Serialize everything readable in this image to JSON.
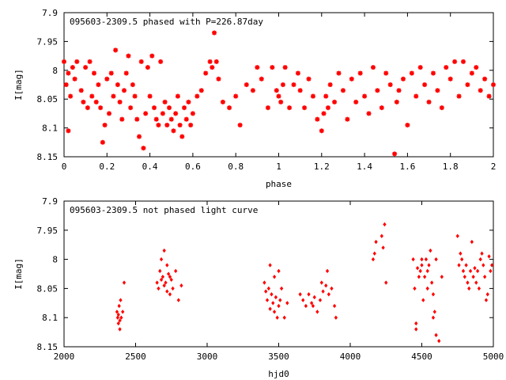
{
  "chart_data": [
    {
      "type": "scatter",
      "title": "095603-2309.5 phased with P=226.87day",
      "xlabel": "phase",
      "ylabel": "I[mag]",
      "xlim": [
        0,
        2
      ],
      "ylim": [
        8.15,
        7.9
      ],
      "y_inverted": true,
      "xticks": [
        0,
        0.2,
        0.4,
        0.6,
        0.8,
        1,
        1.2,
        1.4,
        1.6,
        1.8,
        2
      ],
      "yticks": [
        7.9,
        7.95,
        8,
        8.05,
        8.1,
        8.15
      ],
      "xtick_labels": [
        "0",
        "0.2",
        "0.4",
        "0.6",
        "0.8",
        "1",
        "1.2",
        "1.4",
        "1.6",
        "1.8",
        "2"
      ],
      "ytick_labels": [
        "7.9",
        "7.95",
        "8",
        "8.05",
        "8.1",
        "8.15"
      ],
      "marker_color": "#ff0000",
      "marker": "star",
      "grid": false,
      "series": [
        {
          "x": [
            0.0,
            0.01,
            0.02,
            0.02,
            0.03,
            0.04,
            0.05,
            0.06,
            0.08,
            0.09,
            0.1,
            0.11,
            0.12,
            0.13,
            0.14,
            0.15,
            0.16,
            0.17,
            0.18,
            0.19,
            0.2,
            0.21,
            0.22,
            0.23,
            0.24,
            0.25,
            0.26,
            0.27,
            0.28,
            0.29,
            0.3,
            0.31,
            0.32,
            0.33,
            0.34,
            0.35,
            0.36,
            0.37,
            0.38,
            0.39,
            0.4,
            0.41,
            0.42,
            0.43,
            0.44,
            0.45,
            0.46,
            0.47,
            0.48,
            0.49,
            0.5,
            0.51,
            0.52,
            0.53,
            0.54,
            0.55,
            0.56,
            0.57,
            0.58,
            0.59,
            0.6,
            0.62,
            0.64,
            0.66,
            0.68,
            0.69,
            0.7,
            0.71,
            0.72,
            0.74,
            0.77,
            0.8,
            0.82,
            0.85,
            0.88,
            0.9,
            0.92,
            0.95,
            0.97,
            0.99,
            1.0,
            1.01,
            1.02,
            1.03,
            1.05,
            1.07,
            1.09,
            1.1,
            1.12,
            1.14,
            1.16,
            1.18,
            1.2,
            1.21,
            1.22,
            1.23,
            1.24,
            1.26,
            1.28,
            1.3,
            1.32,
            1.34,
            1.36,
            1.38,
            1.4,
            1.42,
            1.44,
            1.46,
            1.48,
            1.5,
            1.52,
            1.54,
            1.55,
            1.56,
            1.58,
            1.6,
            1.62,
            1.64,
            1.66,
            1.68,
            1.7,
            1.72,
            1.74,
            1.76,
            1.78,
            1.8,
            1.82,
            1.84,
            1.86,
            1.88,
            1.9,
            1.92,
            1.94,
            1.96,
            1.98,
            2.0
          ],
          "y": [
            7.985,
            8.025,
            8.005,
            8.105,
            8.045,
            7.995,
            8.015,
            7.985,
            8.035,
            8.055,
            7.995,
            8.065,
            7.985,
            8.045,
            8.005,
            8.055,
            8.025,
            8.065,
            8.125,
            8.095,
            8.015,
            8.075,
            8.005,
            8.045,
            7.965,
            8.025,
            8.055,
            8.085,
            8.035,
            8.005,
            7.975,
            8.065,
            8.025,
            8.045,
            8.085,
            8.115,
            7.985,
            8.135,
            8.075,
            7.995,
            8.045,
            7.975,
            8.065,
            8.085,
            8.095,
            7.985,
            8.075,
            8.055,
            8.095,
            8.065,
            8.085,
            8.105,
            8.075,
            8.045,
            8.095,
            8.115,
            8.065,
            8.085,
            8.055,
            8.095,
            8.075,
            8.045,
            8.035,
            8.005,
            7.985,
            7.995,
            7.935,
            7.985,
            8.015,
            8.055,
            8.065,
            8.045,
            8.095,
            8.025,
            8.035,
            7.995,
            8.015,
            8.065,
            7.995,
            8.035,
            8.045,
            8.055,
            8.025,
            7.995,
            8.065,
            8.025,
            8.005,
            8.035,
            8.065,
            8.015,
            8.045,
            8.085,
            8.105,
            8.075,
            8.045,
            8.065,
            8.025,
            8.055,
            8.005,
            8.035,
            8.085,
            8.015,
            8.055,
            8.005,
            8.045,
            8.075,
            7.995,
            8.035,
            8.065,
            8.005,
            8.025,
            8.145,
            8.055,
            8.035,
            8.015,
            8.095,
            8.005,
            8.045,
            7.995,
            8.025,
            8.055,
            8.005,
            8.035,
            8.065,
            7.995,
            8.015,
            7.985,
            8.045,
            7.985,
            8.025,
            8.005,
            7.995,
            8.035,
            8.015,
            8.045,
            8.025
          ]
        }
      ]
    },
    {
      "type": "scatter",
      "title": "095603-2309.5 not phased light curve",
      "xlabel": "hjd0",
      "ylabel": "I[mag]",
      "xlim": [
        2000,
        5000
      ],
      "ylim": [
        8.15,
        7.9
      ],
      "y_inverted": true,
      "xticks": [
        2000,
        2500,
        3000,
        3500,
        4000,
        4500,
        5000
      ],
      "yticks": [
        7.9,
        7.95,
        8,
        8.05,
        8.1,
        8.15
      ],
      "xtick_labels": [
        "2000",
        "2500",
        "3000",
        "3500",
        "4000",
        "4500",
        "5000"
      ],
      "ytick_labels": [
        "7.9",
        "7.95",
        "8",
        "8.05",
        "8.1",
        "8.15"
      ],
      "marker_color": "#ff0000",
      "marker": "diamond",
      "grid": false,
      "series": [
        {
          "x": [
            2370,
            2375,
            2380,
            2385,
            2390,
            2395,
            2400,
            2380,
            2390,
            2410,
            2420,
            2650,
            2660,
            2670,
            2680,
            2690,
            2700,
            2710,
            2720,
            2730,
            2740,
            2750,
            2760,
            2680,
            2700,
            2720,
            2740,
            2780,
            2800,
            2820,
            3400,
            3410,
            3420,
            3430,
            3440,
            3450,
            3460,
            3470,
            3480,
            3490,
            3500,
            3510,
            3520,
            3540,
            3560,
            3440,
            3470,
            3500,
            3650,
            3670,
            3690,
            3710,
            3730,
            3750,
            3770,
            3790,
            3810,
            3830,
            3850,
            3870,
            3890,
            3740,
            3800,
            3840,
            3900,
            4160,
            4170,
            4180,
            4220,
            4230,
            4240,
            4250,
            4440,
            4450,
            4460,
            4470,
            4480,
            4490,
            4500,
            4510,
            4520,
            4530,
            4540,
            4550,
            4560,
            4570,
            4580,
            4590,
            4600,
            4620,
            4640,
            4460,
            4500,
            4540,
            4580,
            4600,
            4750,
            4760,
            4770,
            4780,
            4790,
            4800,
            4810,
            4820,
            4830,
            4840,
            4850,
            4860,
            4870,
            4880,
            4890,
            4900,
            4910,
            4920,
            4930,
            4940,
            4950,
            4960,
            4970,
            4980,
            4990
          ],
          "y": [
            8.09,
            8.1,
            8.11,
            8.08,
            8.12,
            8.07,
            8.1,
            8.095,
            8.105,
            8.09,
            8.04,
            8.04,
            8.05,
            8.02,
            8.035,
            8.03,
            8.045,
            8.04,
            8.055,
            8.025,
            8.06,
            8.035,
            8.05,
            8.0,
            7.985,
            8.01,
            8.03,
            8.02,
            8.07,
            8.045,
            8.04,
            8.055,
            8.07,
            8.05,
            8.085,
            8.06,
            8.075,
            8.09,
            8.065,
            8.1,
            8.08,
            8.07,
            8.05,
            8.1,
            8.075,
            8.01,
            8.03,
            8.02,
            8.06,
            8.07,
            8.08,
            8.06,
            8.075,
            8.065,
            8.09,
            8.07,
            8.055,
            8.045,
            8.06,
            8.05,
            8.08,
            8.08,
            8.04,
            8.02,
            8.1,
            8.0,
            7.99,
            7.97,
            7.96,
            7.98,
            7.94,
            8.04,
            8.0,
            8.05,
            8.12,
            8.015,
            8.03,
            8.02,
            8.01,
            8.07,
            8.03,
            8.0,
            8.02,
            8.01,
            7.985,
            8.04,
            8.06,
            8.09,
            8.0,
            8.14,
            8.03,
            8.11,
            8.0,
            8.05,
            8.1,
            8.13,
            7.96,
            8.01,
            7.99,
            8.0,
            8.02,
            8.03,
            8.01,
            8.04,
            8.05,
            8.02,
            7.97,
            8.03,
            8.015,
            8.04,
            8.02,
            8.05,
            8.0,
            7.99,
            8.01,
            8.03,
            8.07,
            8.06,
            7.995,
            8.02,
            8.01
          ]
        }
      ]
    }
  ]
}
